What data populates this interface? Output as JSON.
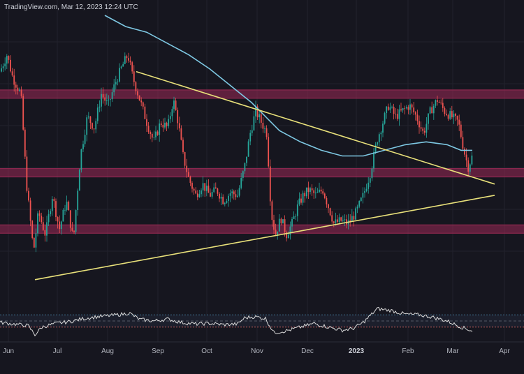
{
  "header": {
    "source": "TradingView.com, Mar 12, 2023 12:24 UTC"
  },
  "colors": {
    "background": "#16161f",
    "up_candle": "#26a69a",
    "down_candle": "#ef5350",
    "moving_average": "#7ec8e3",
    "trendline": "#e8e07a",
    "zone": "#9c2a55",
    "rsi": "#d8d8d8",
    "rsi_band": "#3d6f8c",
    "rsi_level": "#c25a5a"
  },
  "chart_data": {
    "type": "candlestick",
    "title": "",
    "x_axis": {
      "tick_labels": [
        "Jun",
        "Jul",
        "Aug",
        "Sep",
        "Oct",
        "Nov",
        "Dec",
        "2023",
        "Feb",
        "Mar",
        "Apr"
      ],
      "bold_tick": "2023"
    },
    "price_path": [
      [
        0,
        0.8
      ],
      [
        10,
        0.86
      ],
      [
        18,
        0.78
      ],
      [
        30,
        0.72
      ],
      [
        38,
        0.4
      ],
      [
        48,
        0.16
      ],
      [
        55,
        0.3
      ],
      [
        65,
        0.22
      ],
      [
        75,
        0.36
      ],
      [
        85,
        0.24
      ],
      [
        95,
        0.34
      ],
      [
        105,
        0.2
      ],
      [
        115,
        0.5
      ],
      [
        125,
        0.64
      ],
      [
        135,
        0.6
      ],
      [
        145,
        0.72
      ],
      [
        155,
        0.68
      ],
      [
        165,
        0.76
      ],
      [
        175,
        0.82
      ],
      [
        183,
        0.86
      ],
      [
        190,
        0.78
      ],
      [
        200,
        0.7
      ],
      [
        210,
        0.62
      ],
      [
        220,
        0.55
      ],
      [
        230,
        0.62
      ],
      [
        240,
        0.6
      ],
      [
        248,
        0.7
      ],
      [
        255,
        0.62
      ],
      [
        262,
        0.5
      ],
      [
        270,
        0.42
      ],
      [
        280,
        0.36
      ],
      [
        290,
        0.4
      ],
      [
        300,
        0.36
      ],
      [
        310,
        0.38
      ],
      [
        320,
        0.34
      ],
      [
        330,
        0.37
      ],
      [
        340,
        0.36
      ],
      [
        350,
        0.46
      ],
      [
        358,
        0.58
      ],
      [
        366,
        0.66
      ],
      [
        374,
        0.62
      ],
      [
        382,
        0.58
      ],
      [
        388,
        0.3
      ],
      [
        394,
        0.22
      ],
      [
        402,
        0.28
      ],
      [
        410,
        0.22
      ],
      [
        418,
        0.26
      ],
      [
        426,
        0.32
      ],
      [
        434,
        0.36
      ],
      [
        442,
        0.38
      ],
      [
        452,
        0.36
      ],
      [
        462,
        0.38
      ],
      [
        470,
        0.32
      ],
      [
        478,
        0.26
      ],
      [
        488,
        0.27
      ],
      [
        498,
        0.26
      ],
      [
        510,
        0.3
      ],
      [
        520,
        0.36
      ],
      [
        530,
        0.44
      ],
      [
        540,
        0.56
      ],
      [
        548,
        0.62
      ],
      [
        556,
        0.68
      ],
      [
        566,
        0.64
      ],
      [
        576,
        0.66
      ],
      [
        586,
        0.68
      ],
      [
        596,
        0.64
      ],
      [
        606,
        0.58
      ],
      [
        616,
        0.66
      ],
      [
        626,
        0.7
      ],
      [
        636,
        0.66
      ],
      [
        646,
        0.64
      ],
      [
        656,
        0.62
      ],
      [
        664,
        0.52
      ],
      [
        670,
        0.46
      ],
      [
        676,
        0.5
      ]
    ],
    "moving_average_path": [
      [
        150,
        1.0
      ],
      [
        180,
        0.96
      ],
      [
        210,
        0.94
      ],
      [
        240,
        0.9
      ],
      [
        270,
        0.86
      ],
      [
        300,
        0.81
      ],
      [
        330,
        0.75
      ],
      [
        360,
        0.69
      ],
      [
        380,
        0.64
      ],
      [
        400,
        0.59
      ],
      [
        430,
        0.55
      ],
      [
        460,
        0.52
      ],
      [
        490,
        0.5
      ],
      [
        520,
        0.5
      ],
      [
        550,
        0.52
      ],
      [
        580,
        0.54
      ],
      [
        610,
        0.55
      ],
      [
        640,
        0.54
      ],
      [
        660,
        0.52
      ],
      [
        676,
        0.52
      ]
    ],
    "resistance_zones": [
      {
        "label": "upper",
        "level": 0.72
      },
      {
        "label": "middle",
        "level": 0.44
      },
      {
        "label": "lower",
        "level": 0.24
      }
    ],
    "trendlines": [
      {
        "label": "descending resistance",
        "from": [
          195,
          0.8
        ],
        "to": [
          708,
          0.4
        ]
      },
      {
        "label": "ascending support",
        "from": [
          50,
          0.06
        ],
        "to": [
          708,
          0.36
        ]
      }
    ],
    "rsi_path": [
      [
        0,
        0.45
      ],
      [
        20,
        0.4
      ],
      [
        40,
        0.35
      ],
      [
        50,
        0.05
      ],
      [
        60,
        0.3
      ],
      [
        80,
        0.42
      ],
      [
        100,
        0.48
      ],
      [
        120,
        0.58
      ],
      [
        140,
        0.64
      ],
      [
        160,
        0.68
      ],
      [
        175,
        0.72
      ],
      [
        185,
        0.76
      ],
      [
        200,
        0.55
      ],
      [
        220,
        0.5
      ],
      [
        240,
        0.56
      ],
      [
        260,
        0.45
      ],
      [
        280,
        0.4
      ],
      [
        300,
        0.42
      ],
      [
        320,
        0.38
      ],
      [
        340,
        0.4
      ],
      [
        350,
        0.6
      ],
      [
        365,
        0.64
      ],
      [
        380,
        0.58
      ],
      [
        392,
        0.12
      ],
      [
        410,
        0.18
      ],
      [
        430,
        0.3
      ],
      [
        450,
        0.42
      ],
      [
        470,
        0.3
      ],
      [
        490,
        0.2
      ],
      [
        505,
        0.25
      ],
      [
        520,
        0.45
      ],
      [
        540,
        0.9
      ],
      [
        560,
        0.84
      ],
      [
        580,
        0.72
      ],
      [
        600,
        0.7
      ],
      [
        620,
        0.62
      ],
      [
        640,
        0.5
      ],
      [
        660,
        0.3
      ],
      [
        676,
        0.18
      ]
    ]
  }
}
